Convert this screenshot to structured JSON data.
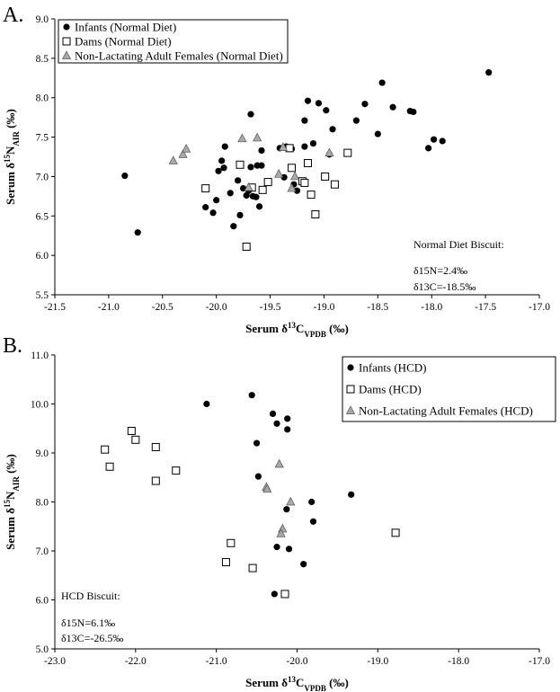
{
  "chart_data": [
    {
      "type": "scatter",
      "panel_label": "A.",
      "xlabel": {
        "pre": "Serum δ",
        "sup": "13",
        "main": "C",
        "sub": "VPDB",
        "post": " (‰)"
      },
      "ylabel": {
        "pre": "Serum δ",
        "sup": "15",
        "main": "N",
        "sub": "AIR",
        "post": " (‰)"
      },
      "xlim": [
        -21.5,
        -17.0
      ],
      "ylim": [
        5.5,
        9.0
      ],
      "xticks": [
        "-21.5",
        "-21.0",
        "-20.5",
        "-20.0",
        "-19.5",
        "-19.0",
        "-18.5",
        "-18.0",
        "-17.5",
        "-17.0"
      ],
      "yticks": [
        "5.5",
        "6.0",
        "6.5",
        "7.0",
        "7.5",
        "8.0",
        "8.5",
        "9.0"
      ],
      "legend_position": "top-left",
      "annotation": {
        "title": "Normal Diet Biscuit:",
        "lines": [
          "δ15N=2.4‰",
          "δ13C=-18.5‰"
        ]
      },
      "series": [
        {
          "name": "Infants (Normal Diet)",
          "marker": "filled-circle",
          "color": "#000000",
          "points": [
            [
              -20.85,
              7.01
            ],
            [
              -20.73,
              6.29
            ],
            [
              -20.1,
              6.61
            ],
            [
              -20.03,
              6.54
            ],
            [
              -20.0,
              6.7
            ],
            [
              -19.98,
              7.07
            ],
            [
              -19.95,
              7.2
            ],
            [
              -19.92,
              7.38
            ],
            [
              -19.93,
              7.11
            ],
            [
              -19.87,
              6.79
            ],
            [
              -19.84,
              6.37
            ],
            [
              -19.8,
              6.95
            ],
            [
              -19.78,
              6.51
            ],
            [
              -19.75,
              6.85
            ],
            [
              -19.72,
              6.76
            ],
            [
              -19.7,
              6.82
            ],
            [
              -19.68,
              7.12
            ],
            [
              -19.68,
              7.79
            ],
            [
              -19.66,
              6.75
            ],
            [
              -19.63,
              6.74
            ],
            [
              -19.62,
              7.14
            ],
            [
              -19.6,
              6.62
            ],
            [
              -19.58,
              7.33
            ],
            [
              -19.58,
              7.14
            ],
            [
              -19.41,
              7.36
            ],
            [
              -19.37,
              6.99
            ],
            [
              -19.35,
              7.38
            ],
            [
              -19.3,
              7.35
            ],
            [
              -19.28,
              6.9
            ],
            [
              -19.25,
              6.82
            ],
            [
              -19.18,
              7.71
            ],
            [
              -19.15,
              7.96
            ],
            [
              -19.18,
              7.38
            ],
            [
              -19.1,
              7.42
            ],
            [
              -19.05,
              7.93
            ],
            [
              -18.98,
              7.84
            ],
            [
              -18.95,
              7.28
            ],
            [
              -18.92,
              7.6
            ],
            [
              -18.62,
              7.92
            ],
            [
              -18.7,
              7.71
            ],
            [
              -18.5,
              7.54
            ],
            [
              -18.46,
              8.19
            ],
            [
              -18.36,
              7.88
            ],
            [
              -18.2,
              7.83
            ],
            [
              -18.17,
              7.82
            ],
            [
              -18.03,
              7.36
            ],
            [
              -17.98,
              7.47
            ],
            [
              -17.9,
              7.45
            ],
            [
              -17.47,
              8.32
            ]
          ]
        },
        {
          "name": "Dams (Normal Diet)",
          "marker": "open-square",
          "color": "#000000",
          "points": [
            [
              -20.1,
              6.85
            ],
            [
              -19.78,
              7.15
            ],
            [
              -19.72,
              6.11
            ],
            [
              -19.67,
              6.86
            ],
            [
              -19.57,
              6.83
            ],
            [
              -19.52,
              6.93
            ],
            [
              -19.32,
              7.36
            ],
            [
              -19.3,
              7.11
            ],
            [
              -19.2,
              6.94
            ],
            [
              -19.18,
              6.92
            ],
            [
              -19.15,
              7.17
            ],
            [
              -19.12,
              6.77
            ],
            [
              -19.08,
              6.52
            ],
            [
              -18.99,
              7.0
            ],
            [
              -18.9,
              6.9
            ],
            [
              -18.78,
              7.3
            ]
          ]
        },
        {
          "name": "Non-Lactating Adult Females (Normal Diet)",
          "marker": "gray-triangle",
          "color": "#A9A9A9",
          "points": [
            [
              -20.4,
              7.2
            ],
            [
              -20.31,
              7.28
            ],
            [
              -20.28,
              7.35
            ],
            [
              -19.76,
              7.48
            ],
            [
              -19.7,
              6.86
            ],
            [
              -19.62,
              7.49
            ],
            [
              -19.42,
              7.03
            ],
            [
              -19.38,
              7.37
            ],
            [
              -19.3,
              6.85
            ],
            [
              -19.27,
              7.0
            ],
            [
              -18.95,
              7.3
            ]
          ]
        }
      ]
    },
    {
      "type": "scatter",
      "panel_label": "B.",
      "xlabel": {
        "pre": "Serum δ",
        "sup": "13",
        "main": "C",
        "sub": "VPDB",
        "post": " (‰)"
      },
      "ylabel": {
        "pre": "Serum δ",
        "sup": "15",
        "main": "N",
        "sub": "AIR",
        "post": " (‰)"
      },
      "xlim": [
        -23.0,
        -17.0
      ],
      "ylim": [
        5.0,
        11.0
      ],
      "xticks": [
        "-23.0",
        "-22.0",
        "-21.0",
        "-20.0",
        "-19.0",
        "-18.0",
        "-17.0"
      ],
      "yticks": [
        "5.0",
        "6.0",
        "7.0",
        "8.0",
        "9.0",
        "10.0",
        "11.0"
      ],
      "legend_position": "top-right",
      "annotation": {
        "title": "HCD Biscuit:",
        "lines": [
          "δ15N=6.1‰",
          "δ13C=-26.5‰"
        ]
      },
      "series": [
        {
          "name": "Infants (HCD)",
          "marker": "filled-circle",
          "color": "#000000",
          "points": [
            [
              -21.12,
              10.0
            ],
            [
              -20.56,
              10.18
            ],
            [
              -20.3,
              9.8
            ],
            [
              -20.12,
              9.7
            ],
            [
              -20.25,
              9.6
            ],
            [
              -20.12,
              9.48
            ],
            [
              -20.5,
              9.2
            ],
            [
              -20.48,
              8.52
            ],
            [
              -19.33,
              8.15
            ],
            [
              -19.82,
              8.0
            ],
            [
              -20.13,
              7.85
            ],
            [
              -19.8,
              7.6
            ],
            [
              -20.25,
              7.08
            ],
            [
              -20.1,
              7.04
            ],
            [
              -19.92,
              6.73
            ],
            [
              -20.28,
              6.12
            ]
          ]
        },
        {
          "name": "Dams (HCD)",
          "marker": "open-square",
          "color": "#000000",
          "points": [
            [
              -22.05,
              9.45
            ],
            [
              -22.0,
              9.27
            ],
            [
              -22.38,
              9.07
            ],
            [
              -21.75,
              9.12
            ],
            [
              -22.32,
              8.72
            ],
            [
              -21.5,
              8.64
            ],
            [
              -21.75,
              8.43
            ],
            [
              -20.82,
              7.16
            ],
            [
              -20.88,
              6.77
            ],
            [
              -20.55,
              6.65
            ],
            [
              -20.15,
              6.12
            ],
            [
              -18.78,
              7.37
            ]
          ]
        },
        {
          "name": "Non-Lactating Adult Females (HCD)",
          "marker": "gray-triangle",
          "color": "#A9A9A9",
          "points": [
            [
              -20.22,
              8.77
            ],
            [
              -20.38,
              8.3
            ],
            [
              -20.37,
              8.26
            ],
            [
              -20.08,
              8.0
            ],
            [
              -20.18,
              7.45
            ],
            [
              -20.2,
              7.35
            ]
          ]
        }
      ]
    }
  ]
}
